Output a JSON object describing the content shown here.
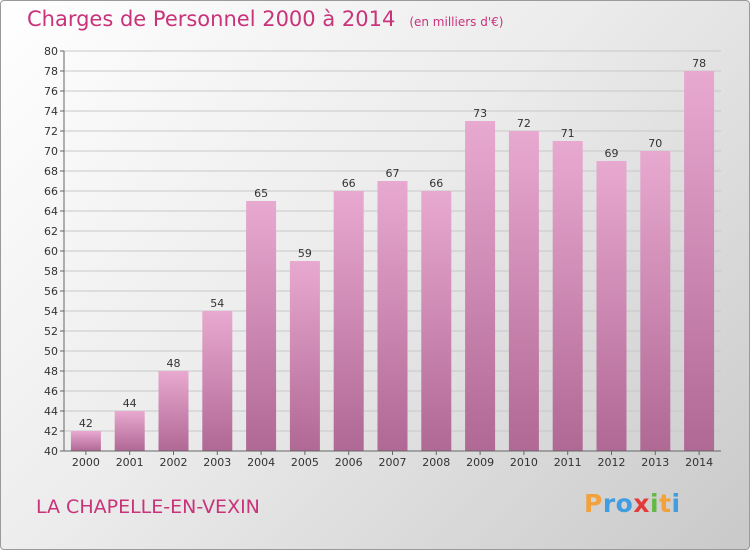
{
  "title": "Charges de Personnel 2000 à 2014",
  "subtitle": "(en milliers d'€)",
  "footer_label": "LA CHAPELLE-EN-VEXIN",
  "logo": {
    "text": "Proxiti",
    "letters": [
      {
        "ch": "P",
        "color": "#f2a13b"
      },
      {
        "ch": "r",
        "color": "#3f9de0"
      },
      {
        "ch": "o",
        "color": "#3f9de0"
      },
      {
        "ch": "x",
        "color": "#e23b3b"
      },
      {
        "ch": "i",
        "color": "#63b944"
      },
      {
        "ch": "t",
        "color": "#f2a13b"
      },
      {
        "ch": "i",
        "color": "#3f9de0"
      }
    ]
  },
  "colors": {
    "title": "#c8337a",
    "bar_top": "#e8a9d0",
    "bar_bottom": "#b06894",
    "grid": "#c8c8c8"
  },
  "chart_data": {
    "type": "bar",
    "categories": [
      "2000",
      "2001",
      "2002",
      "2003",
      "2004",
      "2005",
      "2006",
      "2007",
      "2008",
      "2009",
      "2010",
      "2011",
      "2012",
      "2013",
      "2014"
    ],
    "values": [
      42,
      44,
      48,
      54,
      65,
      59,
      66,
      67,
      66,
      73,
      72,
      71,
      69,
      70,
      78
    ],
    "title": "Charges de Personnel 2000 à 2014",
    "ylim": [
      40,
      80
    ],
    "yticks": [
      40,
      42,
      44,
      46,
      48,
      50,
      52,
      54,
      56,
      58,
      60,
      62,
      64,
      66,
      68,
      70,
      72,
      74,
      76,
      78,
      80
    ],
    "grid": true,
    "data_labels": true
  }
}
